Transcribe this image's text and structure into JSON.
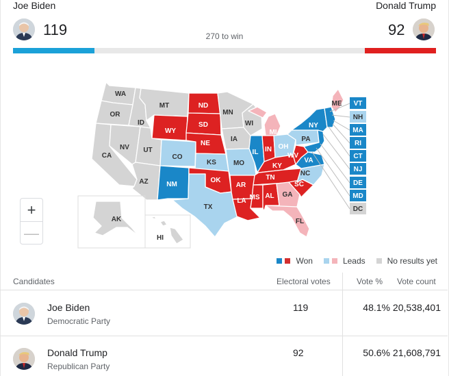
{
  "header": {
    "biden": {
      "name": "Joe Biden",
      "electoral_votes": "119",
      "bar_share": 0.1925
    },
    "trump": {
      "name": "Donald Trump",
      "electoral_votes": "92",
      "bar_share": 0.1685
    },
    "to_win_label": "270 to win"
  },
  "colors": {
    "won_blue": "#1a87c8",
    "won_red": "#dd2222",
    "lead_blue": "#a9d4ee",
    "lead_red": "#f4b4ba",
    "no_results": "#d4d4d4"
  },
  "map": {
    "zoom_in_label": "+",
    "zoom_out_label": "—",
    "state_labels": {
      "WA": "WA",
      "OR": "OR",
      "CA": "CA",
      "ID": "ID",
      "NV": "NV",
      "MT": "MT",
      "WY": "WY",
      "UT": "UT",
      "AZ": "AZ",
      "CO": "CO",
      "NM": "NM",
      "ND": "ND",
      "SD": "SD",
      "NE": "NE",
      "KS": "KS",
      "OK": "OK",
      "TX": "TX",
      "MN": "MN",
      "IA": "IA",
      "MO": "MO",
      "AR": "AR",
      "LA": "LA",
      "WI": "WI",
      "IL": "IL",
      "MI": "MI",
      "IN": "IN",
      "OH": "OH",
      "KY": "KY",
      "TN": "TN",
      "MS": "MS",
      "AL": "AL",
      "GA": "GA",
      "FL": "FL",
      "SC": "SC",
      "NC": "NC",
      "VA": "VA",
      "WV": "WV",
      "PA": "PA",
      "NY": "NY",
      "ME": "ME",
      "AK": "AK",
      "HI": "HI"
    },
    "side_states": [
      "VT",
      "NH",
      "MA",
      "RI",
      "CT",
      "NJ",
      "DE",
      "MD",
      "DC"
    ]
  },
  "legend": {
    "won": "Won",
    "leads": "Leads",
    "no_results": "No results yet"
  },
  "table": {
    "headers": {
      "candidates": "Candidates",
      "electoral_votes": "Electoral votes",
      "vote_pct": "Vote %",
      "vote_count": "Vote count"
    },
    "rows": [
      {
        "name": "Joe Biden",
        "party": "Democratic Party",
        "electoral_votes": "119",
        "vote_pct": "48.1%",
        "vote_count": "20,538,401"
      },
      {
        "name": "Donald Trump",
        "party": "Republican Party",
        "electoral_votes": "92",
        "vote_pct": "50.6%",
        "vote_count": "21,608,791"
      }
    ]
  }
}
